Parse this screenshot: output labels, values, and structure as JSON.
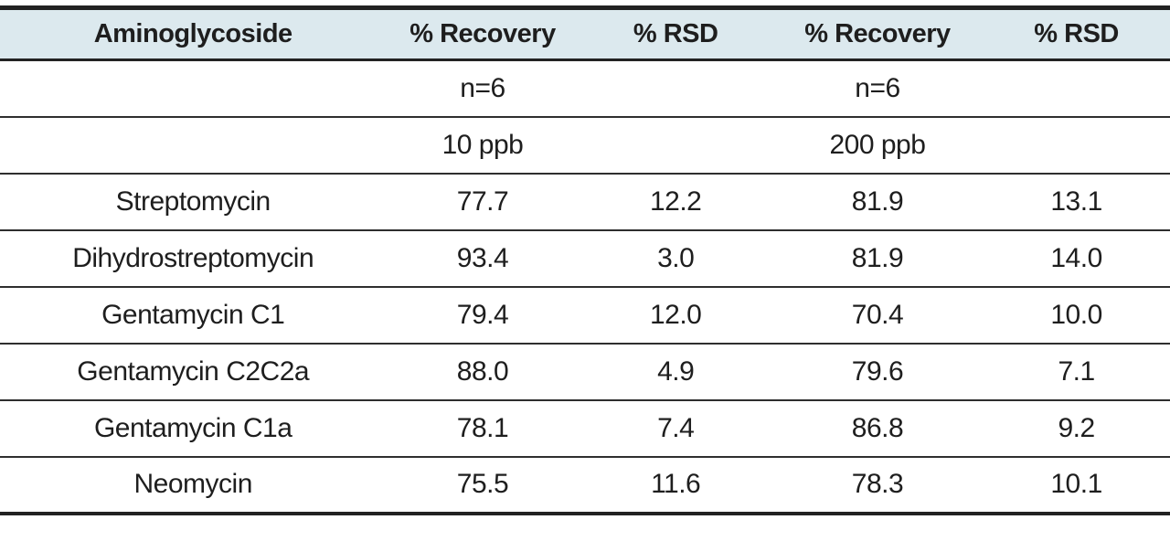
{
  "colors": {
    "header_bg": "#dce9ee",
    "border_strong": "#222222",
    "border_thin": "#2e2e2e",
    "text": "#1e1e1e",
    "page_bg": "#ffffff"
  },
  "table": {
    "header": {
      "cells": [
        "Aminoglycoside",
        "% Recovery",
        "% RSD",
        "% Recovery",
        "% RSD"
      ]
    },
    "meta_rows": [
      {
        "cells": [
          "",
          "n=6",
          "",
          "n=6",
          ""
        ]
      },
      {
        "cells": [
          "",
          "10 ppb",
          "",
          "200 ppb",
          ""
        ]
      }
    ],
    "rows": [
      {
        "cells": [
          "Streptomycin",
          "77.7",
          "12.2",
          "81.9",
          "13.1"
        ]
      },
      {
        "cells": [
          "Dihydrostreptomycin",
          "93.4",
          "3.0",
          "81.9",
          "14.0"
        ]
      },
      {
        "cells": [
          "Gentamycin C1",
          "79.4",
          "12.0",
          "70.4",
          "10.0"
        ]
      },
      {
        "cells": [
          "Gentamycin C2C2a",
          "88.0",
          "4.9",
          "79.6",
          "7.1"
        ]
      },
      {
        "cells": [
          "Gentamycin C1a",
          "78.1",
          "7.4",
          "86.8",
          "9.2"
        ]
      },
      {
        "cells": [
          "Neomycin",
          "75.5",
          "11.6",
          "78.3",
          "10.1"
        ]
      }
    ]
  }
}
